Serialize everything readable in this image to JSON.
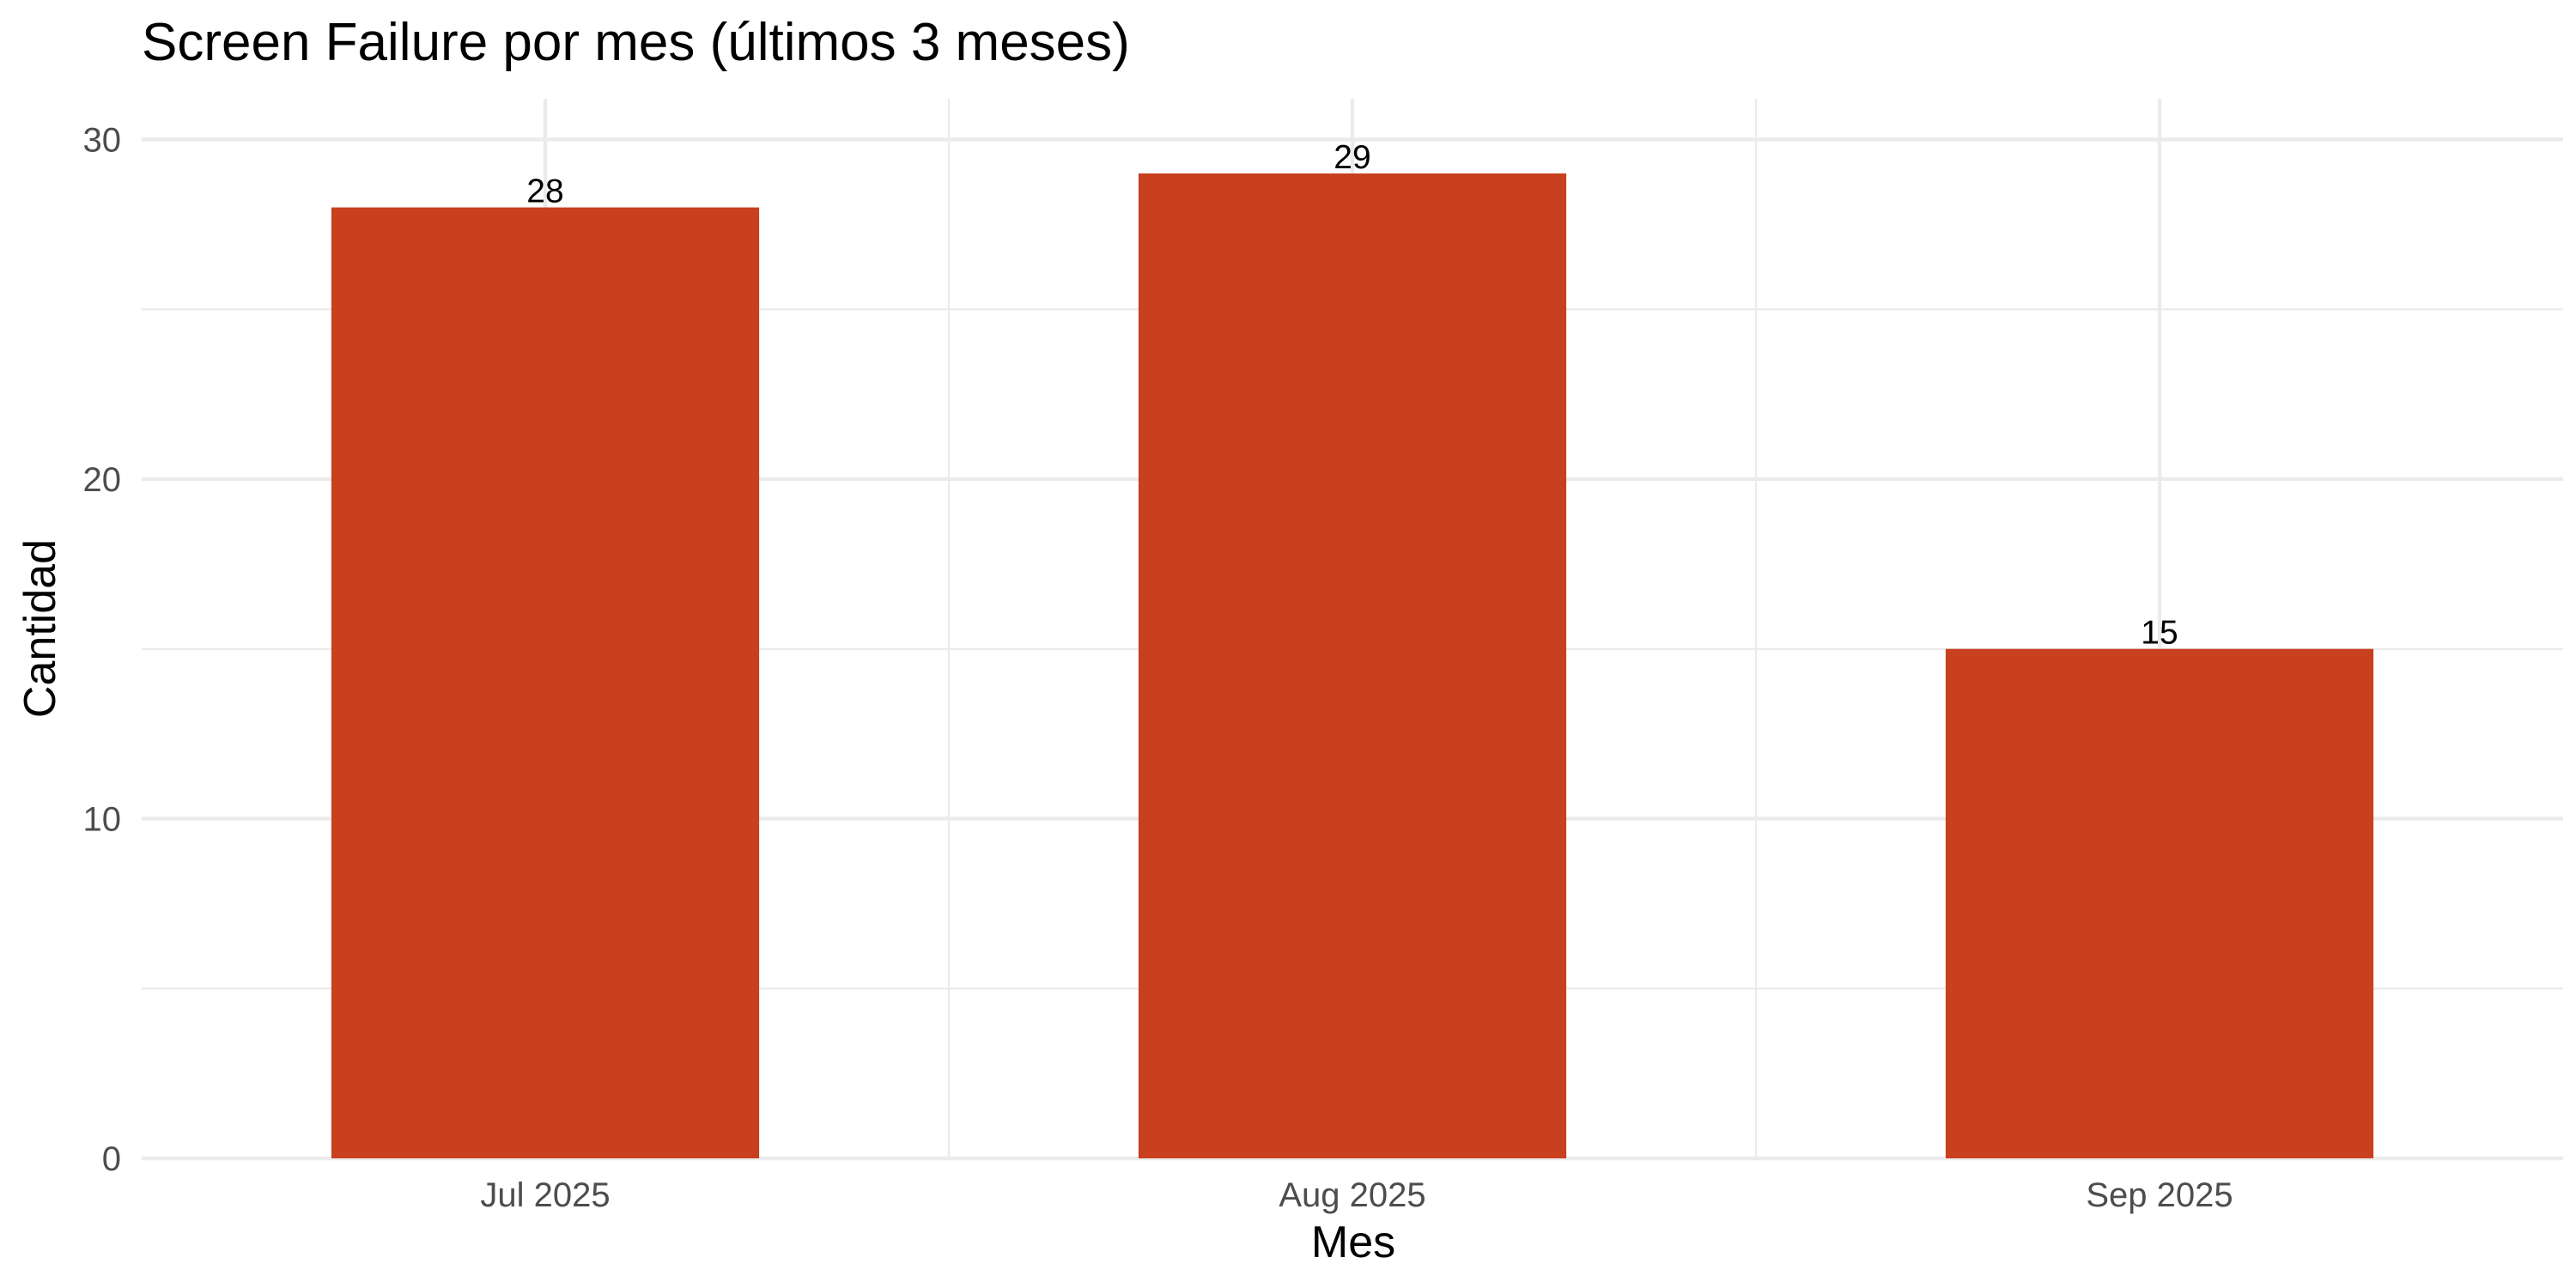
{
  "chart_data": {
    "type": "bar",
    "title": "Screen Failure por mes (últimos 3 meses)",
    "xlabel": "Mes",
    "ylabel": "Cantidad",
    "categories": [
      "Jul 2025",
      "Aug 2025",
      "Sep 2025"
    ],
    "values": [
      28,
      29,
      15
    ],
    "data_labels": [
      "28",
      "29",
      "15"
    ],
    "ylim": [
      0,
      31.2
    ],
    "y_ticks": [
      0,
      10,
      20,
      30
    ],
    "y_tick_labels": [
      "0",
      "10",
      "20",
      "30"
    ],
    "grid": true,
    "legend": "none",
    "colors": {
      "bar": "#c8401e",
      "grid": "#ebebeb",
      "tick_text": "#4d4d4d",
      "background": "#ffffff"
    }
  }
}
